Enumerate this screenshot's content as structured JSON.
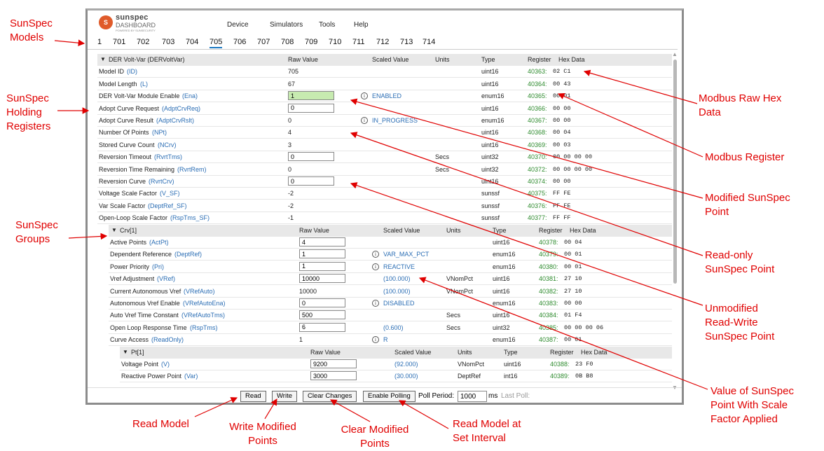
{
  "app": {
    "logo_text_1": "sunspec",
    "logo_text_2": "DASHBOARD",
    "logo_text_3": "POWERED BY SUNSECURITY",
    "menu": [
      "Device",
      "Simulators",
      "Tools",
      "Help"
    ]
  },
  "model_tabs": [
    "1",
    "701",
    "702",
    "703",
    "704",
    "705",
    "706",
    "707",
    "708",
    "709",
    "710",
    "711",
    "712",
    "713",
    "714"
  ],
  "active_tab": "705",
  "columns": {
    "raw": "Raw Value",
    "scaled": "Scaled Value",
    "units": "Units",
    "type": "Type",
    "register": "Register",
    "hex": "Hex Data"
  },
  "model": {
    "title": "DER Volt-Var (DERVoltVar)",
    "points": [
      {
        "label": "Model ID",
        "sym": "(ID)",
        "raw": "705",
        "input": false,
        "scaled": "",
        "units": "",
        "type": "uint16",
        "reg": "40363:",
        "hex": "02 C1"
      },
      {
        "label": "Model Length",
        "sym": "(L)",
        "raw": "67",
        "input": false,
        "scaled": "",
        "units": "",
        "type": "uint16",
        "reg": "40364:",
        "hex": "00 43"
      },
      {
        "label": "DER Volt-Var Module Enable",
        "sym": "(Ena)",
        "raw": "1",
        "input": true,
        "modified": true,
        "info": true,
        "scaled": "ENABLED",
        "units": "",
        "type": "enum16",
        "reg": "40365:",
        "hex": "00 01"
      },
      {
        "label": "Adopt Curve Request",
        "sym": "(AdptCrvReq)",
        "raw": "0",
        "input": true,
        "scaled": "",
        "units": "",
        "type": "uint16",
        "reg": "40366:",
        "hex": "00 00"
      },
      {
        "label": "Adopt Curve Result",
        "sym": "(AdptCrvRslt)",
        "raw": "0",
        "input": false,
        "info": true,
        "scaled": "IN_PROGRESS",
        "units": "",
        "type": "enum16",
        "reg": "40367:",
        "hex": "00 00"
      },
      {
        "label": "Number Of Points",
        "sym": "(NPt)",
        "raw": "4",
        "input": false,
        "scaled": "",
        "units": "",
        "type": "uint16",
        "reg": "40368:",
        "hex": "00 04"
      },
      {
        "label": "Stored Curve Count",
        "sym": "(NCrv)",
        "raw": "3",
        "input": false,
        "scaled": "",
        "units": "",
        "type": "uint16",
        "reg": "40369:",
        "hex": "00 03"
      },
      {
        "label": "Reversion Timeout",
        "sym": "(RvrtTms)",
        "raw": "0",
        "input": true,
        "scaled": "",
        "units": "Secs",
        "type": "uint32",
        "reg": "40370:",
        "hex": "00 00 00 00"
      },
      {
        "label": "Reversion Time Remaining",
        "sym": "(RvrtRem)",
        "raw": "0",
        "input": false,
        "scaled": "",
        "units": "Secs",
        "type": "uint32",
        "reg": "40372:",
        "hex": "00 00 00 00"
      },
      {
        "label": "Reversion Curve",
        "sym": "(RvrtCrv)",
        "raw": "0",
        "input": true,
        "scaled": "",
        "units": "",
        "type": "uint16",
        "reg": "40374:",
        "hex": "00 00"
      },
      {
        "label": "Voltage Scale Factor",
        "sym": "(V_SF)",
        "raw": "-2",
        "input": false,
        "scaled": "",
        "units": "",
        "type": "sunssf",
        "reg": "40375:",
        "hex": "FF FE"
      },
      {
        "label": "Var Scale Factor",
        "sym": "(DeptRef_SF)",
        "raw": "-2",
        "input": false,
        "scaled": "",
        "units": "",
        "type": "sunssf",
        "reg": "40376:",
        "hex": "FF FE"
      },
      {
        "label": "Open-Loop Scale Factor",
        "sym": "(RspTms_SF)",
        "raw": "-1",
        "input": false,
        "scaled": "",
        "units": "",
        "type": "sunssf",
        "reg": "40377:",
        "hex": "FF FF"
      }
    ]
  },
  "crv": {
    "title": "Crv[1]",
    "points": [
      {
        "label": "Active Points",
        "sym": "(ActPt)",
        "raw": "4",
        "input": true,
        "scaled": "",
        "units": "",
        "type": "uint16",
        "reg": "40378:",
        "hex": "00 04"
      },
      {
        "label": "Dependent Reference",
        "sym": "(DeptRef)",
        "raw": "1",
        "input": true,
        "info": true,
        "scaled": "VAR_MAX_PCT",
        "units": "",
        "type": "enum16",
        "reg": "40379:",
        "hex": "00 01"
      },
      {
        "label": "Power Priority",
        "sym": "(Pri)",
        "raw": "1",
        "input": true,
        "info": true,
        "scaled": "REACTIVE",
        "units": "",
        "type": "enum16",
        "reg": "40380:",
        "hex": "00 01"
      },
      {
        "label": "Vref Adjustment",
        "sym": "(VRef)",
        "raw": "10000",
        "input": true,
        "scaled": "(100.000)",
        "units": "VNomPct",
        "type": "uint16",
        "reg": "40381:",
        "hex": "27 10"
      },
      {
        "label": "Current Autonomous Vref",
        "sym": "(VRefAuto)",
        "raw": "10000",
        "input": false,
        "scaled": "(100.000)",
        "units": "VNomPct",
        "type": "uint16",
        "reg": "40382:",
        "hex": "27 10"
      },
      {
        "label": "Autonomous Vref Enable",
        "sym": "(VRefAutoEna)",
        "raw": "0",
        "input": true,
        "info": true,
        "scaled": "DISABLED",
        "units": "",
        "type": "enum16",
        "reg": "40383:",
        "hex": "00 00"
      },
      {
        "label": "Auto Vref Time Constant",
        "sym": "(VRefAutoTms)",
        "raw": "500",
        "input": true,
        "scaled": "",
        "units": "Secs",
        "type": "uint16",
        "reg": "40384:",
        "hex": "01 F4"
      },
      {
        "label": "Open Loop Response Time",
        "sym": "(RspTms)",
        "raw": "6",
        "input": true,
        "scaled": "(0.600)",
        "units": "Secs",
        "type": "uint32",
        "reg": "40385:",
        "hex": "00 00 00 06"
      },
      {
        "label": "Curve Access",
        "sym": "(ReadOnly)",
        "raw": "1",
        "input": false,
        "info": true,
        "scaled": "R",
        "units": "",
        "type": "enum16",
        "reg": "40387:",
        "hex": "00 01"
      }
    ]
  },
  "pt": {
    "title": "Pt[1]",
    "points": [
      {
        "label": "Voltage Point",
        "sym": "(V)",
        "raw": "9200",
        "input": true,
        "scaled": "(92.000)",
        "units": "VNomPct",
        "type": "uint16",
        "reg": "40388:",
        "hex": "23 F0"
      },
      {
        "label": "Reactive Power Point",
        "sym": "(Var)",
        "raw": "3000",
        "input": true,
        "scaled": "(30.000)",
        "units": "DeptRef",
        "type": "int16",
        "reg": "40389:",
        "hex": "0B B8"
      }
    ]
  },
  "footer": {
    "read": "Read",
    "write": "Write",
    "clear": "Clear Changes",
    "polling": "Enable Polling",
    "poll_period_label": "Poll Period:",
    "poll_period_value": "1000",
    "ms": "ms",
    "last_poll": "Last Poll:"
  },
  "annotations": {
    "models": [
      "SunSpec",
      "Models"
    ],
    "holding": [
      "SunSpec",
      "Holding",
      "Registers"
    ],
    "groups": [
      "SunSpec",
      "Groups"
    ],
    "raw_hex": [
      "Modbus Raw Hex",
      "Data"
    ],
    "register": [
      "Modbus Register"
    ],
    "modified": [
      "Modified SunSpec",
      "Point"
    ],
    "readonly": [
      "Read-only",
      "SunSpec Point"
    ],
    "unmodified": [
      "Unmodified",
      "Read-Write",
      "SunSpec Point"
    ],
    "scaled": [
      "Value of SunSpec",
      "Point With Scale",
      "Factor Applied"
    ],
    "read_model": [
      "Read Model"
    ],
    "write_mod": [
      "Write Modified",
      "Points"
    ],
    "clear_mod": [
      "Clear Modified",
      "Points"
    ],
    "interval": [
      "Read Model at",
      "Set Interval"
    ]
  },
  "colors": {
    "annotation": "#e00000",
    "register": "#2e8b2e",
    "symbol": "#2a6db4",
    "modified_input": "#c7ebb0"
  }
}
